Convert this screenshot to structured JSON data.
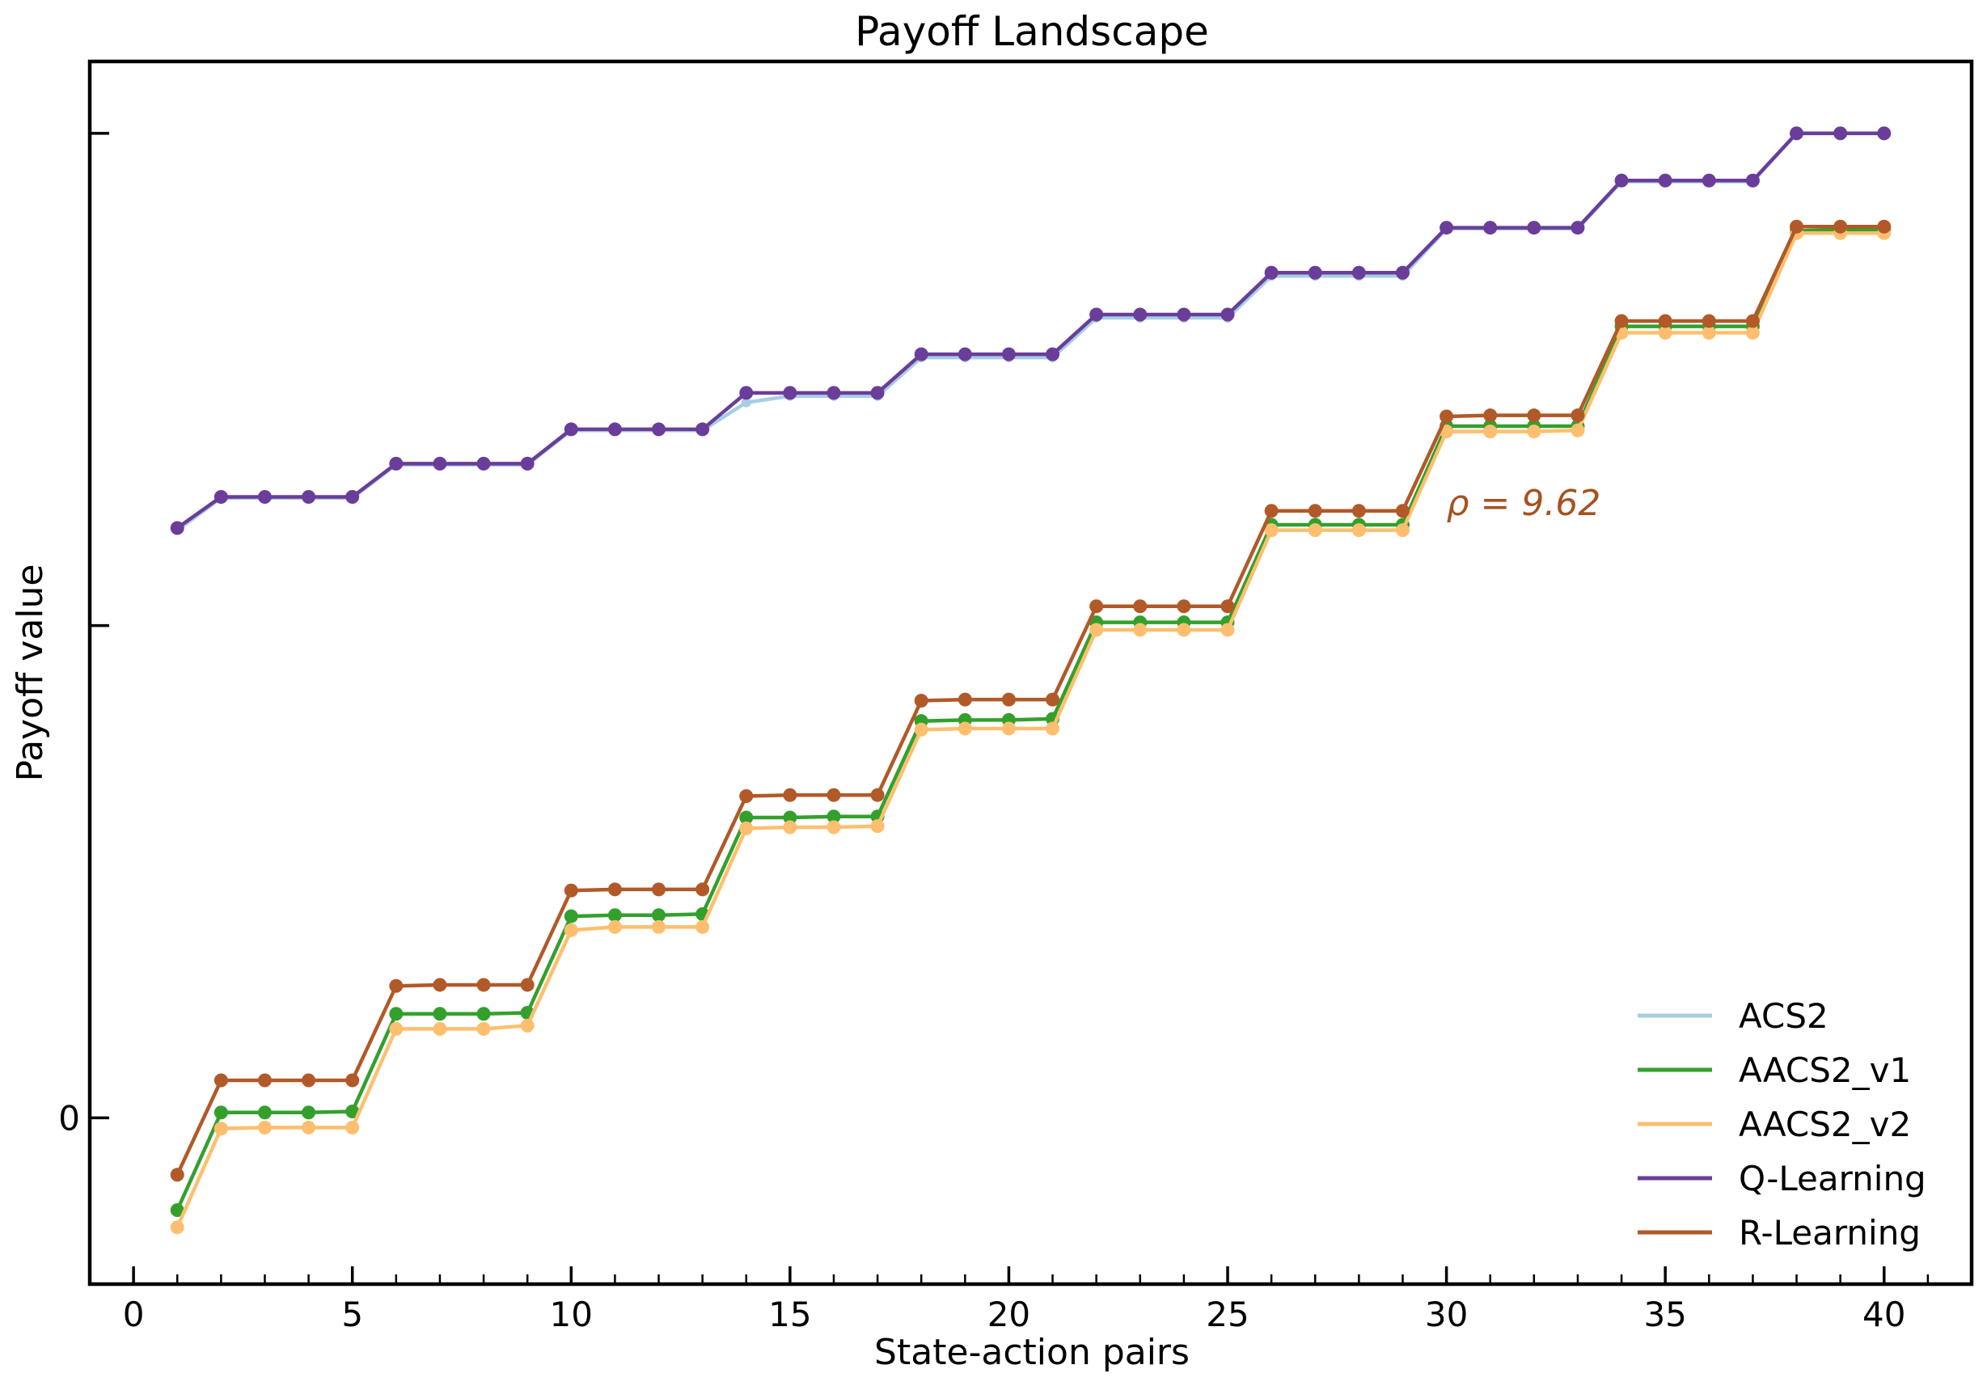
{
  "chart_data": {
    "type": "line",
    "title": "Payoff Landscape",
    "xlabel": "State-action pairs",
    "ylabel": "Payoff value",
    "xlim": [
      -1,
      42
    ],
    "ylim": [
      -155,
      985
    ],
    "xticks": [
      0,
      5,
      10,
      15,
      20,
      25,
      30,
      35,
      40
    ],
    "yticks": [
      0,
      459,
      918
    ],
    "ytick_labels": [
      "0",
      "",
      ""
    ],
    "grid": false,
    "legend_position": "lower-right",
    "annotation": {
      "text": "ρ = 9.62",
      "x": 30,
      "y": 562,
      "color": "#a6521f"
    },
    "x": [
      1,
      2,
      3,
      4,
      5,
      6,
      7,
      8,
      9,
      10,
      11,
      12,
      13,
      14,
      15,
      16,
      17,
      18,
      19,
      20,
      21,
      22,
      23,
      24,
      25,
      26,
      27,
      28,
      29,
      30,
      31,
      32,
      33,
      34,
      35,
      36,
      37,
      38,
      39,
      40
    ],
    "series": [
      {
        "name": "ACS2",
        "color": "#a6cee3",
        "markers": false,
        "values": [
          548,
          578,
          578,
          578,
          578,
          609,
          609,
          609,
          609,
          641,
          641,
          641,
          641,
          667,
          673,
          673,
          673,
          709,
          709,
          709,
          709,
          746,
          746,
          746,
          746,
          785,
          785,
          785,
          785,
          829,
          829,
          829,
          829,
          873,
          873,
          873,
          873,
          918,
          918,
          918
        ]
      },
      {
        "name": "AACS2_v1",
        "color": "#33a02c",
        "markers": true,
        "values": [
          -86,
          5,
          5,
          5,
          6,
          97,
          97,
          97,
          98,
          188,
          189,
          189,
          190,
          280,
          280,
          281,
          281,
          370,
          371,
          371,
          372,
          462,
          462,
          462,
          462,
          553,
          553,
          553,
          553,
          645,
          645,
          645,
          645,
          738,
          738,
          738,
          738,
          827,
          828,
          828
        ]
      },
      {
        "name": "AACS2_v2",
        "color": "#fdbf6f",
        "markers": true,
        "values": [
          -102,
          -10,
          -9,
          -9,
          -9,
          83,
          83,
          83,
          86,
          175,
          178,
          178,
          178,
          270,
          271,
          271,
          272,
          362,
          363,
          363,
          363,
          455,
          455,
          455,
          455,
          548,
          548,
          548,
          548,
          640,
          640,
          640,
          641,
          732,
          732,
          732,
          732,
          825,
          825,
          825
        ]
      },
      {
        "name": "Q-Learning",
        "color": "#6a3d9a",
        "markers": true,
        "values": [
          550,
          579,
          579,
          579,
          579,
          610,
          610,
          610,
          610,
          642,
          642,
          642,
          642,
          676,
          676,
          676,
          676,
          712,
          712,
          712,
          712,
          749,
          749,
          749,
          749,
          788,
          788,
          788,
          788,
          830,
          830,
          830,
          830,
          874,
          874,
          874,
          874,
          918,
          918,
          918
        ]
      },
      {
        "name": "R-Learning",
        "color": "#b15928",
        "markers": true,
        "values": [
          -53,
          35,
          35,
          35,
          35,
          123,
          124,
          124,
          124,
          212,
          213,
          213,
          213,
          300,
          301,
          301,
          301,
          389,
          390,
          390,
          390,
          477,
          477,
          477,
          477,
          566,
          566,
          566,
          566,
          654,
          655,
          655,
          655,
          743,
          743,
          743,
          743,
          831,
          831,
          831
        ]
      }
    ]
  }
}
